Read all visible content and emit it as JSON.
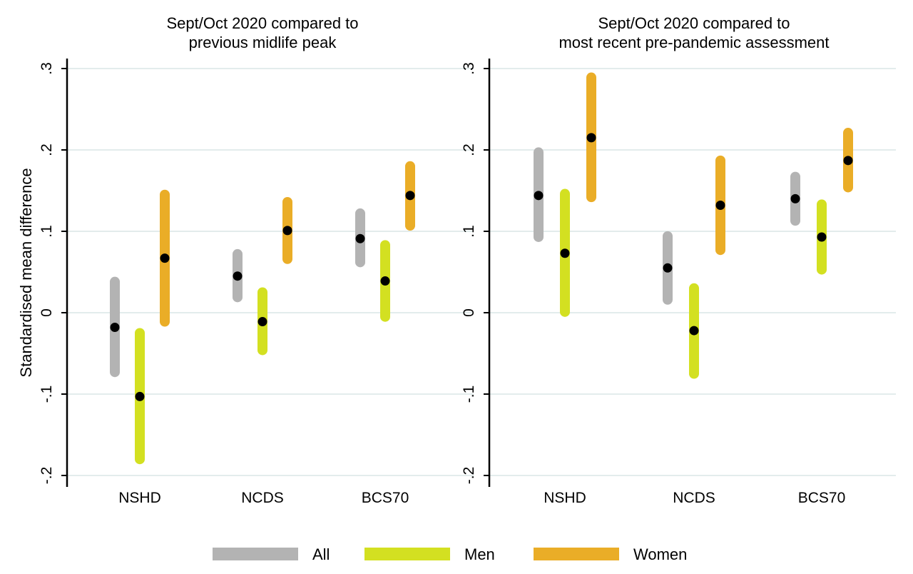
{
  "chart_data": {
    "type": "range-dot",
    "ylabel": "Standardised mean difference",
    "ylim": [
      -0.2,
      0.3
    ],
    "y_ticks": [
      {
        "value": -0.2,
        "label": "-.2"
      },
      {
        "value": -0.1,
        "label": "-.1"
      },
      {
        "value": 0,
        "label": "0"
      },
      {
        "value": 0.1,
        "label": ".1"
      },
      {
        "value": 0.2,
        "label": ".2"
      },
      {
        "value": 0.3,
        "label": ".3"
      }
    ],
    "grid": true,
    "legend_position": "bottom",
    "series_colors": {
      "All": "#b3b3b3",
      "Men": "#d3e021",
      "Women": "#eaad27"
    },
    "point_color": "#000000",
    "categories": [
      "NSHD",
      "NCDS",
      "BCS70"
    ],
    "legend": [
      {
        "name": "All",
        "color": "#b3b3b3"
      },
      {
        "name": "Men",
        "color": "#d3e021"
      },
      {
        "name": "Women",
        "color": "#eaad27"
      }
    ],
    "panels": [
      {
        "title_lines": [
          "Sept/Oct 2020 compared to",
          "previous midlife peak"
        ],
        "series": [
          {
            "name": "All",
            "points": [
              {
                "category": "NSHD",
                "estimate": -0.018,
                "ci_low": -0.073,
                "ci_high": 0.038
              },
              {
                "category": "NCDS",
                "estimate": 0.045,
                "ci_low": 0.019,
                "ci_high": 0.072
              },
              {
                "category": "BCS70",
                "estimate": 0.091,
                "ci_low": 0.062,
                "ci_high": 0.122
              }
            ]
          },
          {
            "name": "Men",
            "points": [
              {
                "category": "NSHD",
                "estimate": -0.103,
                "ci_low": -0.18,
                "ci_high": -0.025
              },
              {
                "category": "NCDS",
                "estimate": -0.011,
                "ci_low": -0.046,
                "ci_high": 0.025
              },
              {
                "category": "BCS70",
                "estimate": 0.039,
                "ci_low": -0.005,
                "ci_high": 0.083
              }
            ]
          },
          {
            "name": "Women",
            "points": [
              {
                "category": "NSHD",
                "estimate": 0.067,
                "ci_low": -0.011,
                "ci_high": 0.145
              },
              {
                "category": "NCDS",
                "estimate": 0.101,
                "ci_low": 0.066,
                "ci_high": 0.136
              },
              {
                "category": "BCS70",
                "estimate": 0.144,
                "ci_low": 0.107,
                "ci_high": 0.18
              }
            ]
          }
        ]
      },
      {
        "title_lines": [
          "Sept/Oct 2020 compared to",
          "most recent pre-pandemic assessment"
        ],
        "series": [
          {
            "name": "All",
            "points": [
              {
                "category": "NSHD",
                "estimate": 0.144,
                "ci_low": 0.093,
                "ci_high": 0.197
              },
              {
                "category": "NCDS",
                "estimate": 0.055,
                "ci_low": 0.016,
                "ci_high": 0.094
              },
              {
                "category": "BCS70",
                "estimate": 0.14,
                "ci_low": 0.113,
                "ci_high": 0.167
              }
            ]
          },
          {
            "name": "Men",
            "points": [
              {
                "category": "NSHD",
                "estimate": 0.073,
                "ci_low": 0.001,
                "ci_high": 0.146
              },
              {
                "category": "NCDS",
                "estimate": -0.022,
                "ci_low": -0.075,
                "ci_high": 0.03
              },
              {
                "category": "BCS70",
                "estimate": 0.093,
                "ci_low": 0.053,
                "ci_high": 0.133
              }
            ]
          },
          {
            "name": "Women",
            "points": [
              {
                "category": "NSHD",
                "estimate": 0.215,
                "ci_low": 0.142,
                "ci_high": 0.289
              },
              {
                "category": "NCDS",
                "estimate": 0.132,
                "ci_low": 0.077,
                "ci_high": 0.187
              },
              {
                "category": "BCS70",
                "estimate": 0.187,
                "ci_low": 0.154,
                "ci_high": 0.221
              }
            ]
          }
        ]
      }
    ]
  }
}
